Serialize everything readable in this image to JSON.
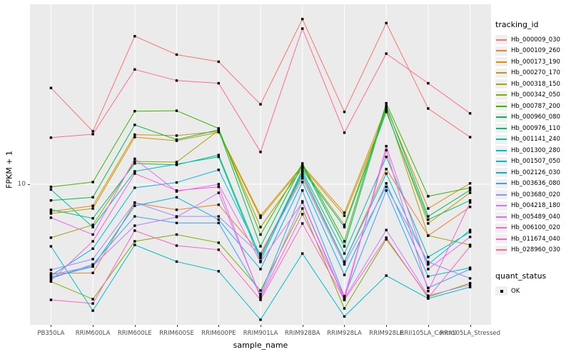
{
  "chart_data": {
    "type": "line",
    "title": "",
    "xlabel": "sample_name",
    "ylabel": "FPKM + 1",
    "y_scale": "log10",
    "y_ticks": [
      {
        "value": 10,
        "label": "10"
      }
    ],
    "y_axis_approx_range": [
      2.0,
      70
    ],
    "grid": "on",
    "panel_bg": "#EBEBEB",
    "grid_color": "#FFFFFF",
    "marker_color": "#000000",
    "categories": [
      "PB350LA",
      "RRIM600LA",
      "RRIM600LE",
      "RRIM600SE",
      "RRIM600PE",
      "RRIM901LA",
      "RRIM928BA",
      "RRIM928LA",
      "RRIM928LE",
      "RRII105LA_Control",
      "RRII105LA_Stressed"
    ],
    "series": [
      {
        "name": "Hb_000009_030",
        "color": "#F8766D",
        "values": [
          30.3,
          18.4,
          55,
          44.5,
          41,
          25.1,
          67,
          23,
          64,
          23.9,
          17.2
        ]
      },
      {
        "name": "Hb_000109_260",
        "color": "#EA8331",
        "values": [
          3.58,
          3.6,
          8.07,
          7.45,
          7.9,
          4.5,
          11,
          4.08,
          11.9,
          5.53,
          7.7
        ]
      },
      {
        "name": "Hb_000173_190",
        "color": "#D89000",
        "values": [
          7.3,
          7.8,
          17.7,
          17.5,
          18.4,
          6.96,
          12.4,
          7.2,
          24.3,
          7.56,
          10.1
        ]
      },
      {
        "name": "Hb_000270_170",
        "color": "#C09B00",
        "values": [
          7.14,
          7.56,
          17.2,
          16.5,
          18.2,
          6.8,
          12.2,
          6.96,
          23.3,
          6.36,
          9.06
        ]
      },
      {
        "name": "Hb_000318_150",
        "color": "#A3A500",
        "values": [
          5.4,
          6.26,
          13,
          12.9,
          18.6,
          6.1,
          12.05,
          6.26,
          23.9,
          5.53,
          4.97
        ]
      },
      {
        "name": "Hb_000342_050",
        "color": "#7CAE00",
        "values": [
          3.26,
          2.66,
          5.18,
          5.6,
          5.1,
          2.94,
          7.56,
          2.39,
          5.3,
          2.73,
          3.2
        ]
      },
      {
        "name": "Hb_000787_200",
        "color": "#39B600",
        "values": [
          9.7,
          10.25,
          23.2,
          23.3,
          19,
          5.6,
          12.7,
          5.18,
          25.4,
          8.7,
          9.6
        ]
      },
      {
        "name": "Hb_000960_080",
        "color": "#00BB4E",
        "values": [
          8.3,
          8.6,
          19.8,
          16.7,
          18.7,
          4.89,
          12.5,
          4.89,
          24.7,
          6.9,
          9.35
        ]
      },
      {
        "name": "Hb_000976_110",
        "color": "#00BF7D",
        "values": [
          7.45,
          6.75,
          12.7,
          12.5,
          14,
          4.28,
          11.8,
          6.1,
          23,
          6.65,
          8.3
        ]
      },
      {
        "name": "Hb_001141_240",
        "color": "#00C1A3",
        "values": [
          9.4,
          6.1,
          11.6,
          12.6,
          13.7,
          4.13,
          11.6,
          4.5,
          13.7,
          4.32,
          5.76
        ]
      },
      {
        "name": "Hb_001300_280",
        "color": "#00BFC4",
        "values": [
          4.89,
          2.33,
          4.97,
          4.1,
          3.67,
          2.1,
          4.5,
          2.18,
          3.49,
          2.68,
          3.06
        ]
      },
      {
        "name": "Hb_001507_050",
        "color": "#00BAE0",
        "values": [
          3.49,
          4.76,
          9.6,
          10.2,
          11.8,
          4.4,
          11.3,
          4.1,
          11.3,
          3.97,
          5.9
        ]
      },
      {
        "name": "Hb_002126_030",
        "color": "#00B0F6",
        "values": [
          3.43,
          3.87,
          7.8,
          8.6,
          6.65,
          3.76,
          10.25,
          3.52,
          10.1,
          3.46,
          3.82
        ]
      },
      {
        "name": "Hb_003636_080",
        "color": "#35A2FF",
        "values": [
          3.38,
          3.97,
          6.9,
          6.4,
          6.4,
          2.82,
          9.3,
          2.75,
          9.3,
          3.03,
          3.76
        ]
      },
      {
        "name": "Hb_003680_020",
        "color": "#9590FF",
        "values": [
          3.73,
          4.22,
          8.1,
          6.9,
          6.9,
          4.43,
          10.7,
          3.97,
          9.7,
          4.08,
          3.38
        ]
      },
      {
        "name": "Hb_004218_180",
        "color": "#C77CFF",
        "values": [
          3.52,
          3.9,
          6.2,
          6.85,
          9.06,
          2.75,
          8.2,
          2.68,
          5.9,
          2.77,
          3.14
        ]
      },
      {
        "name": "Hb_005489_040",
        "color": "#E76BF3",
        "values": [
          6.8,
          5.6,
          13.4,
          9.2,
          10,
          4.08,
          8.1,
          2.64,
          15.5,
          3.76,
          5.45
        ]
      },
      {
        "name": "Hb_006100_020",
        "color": "#FA62DB",
        "values": [
          3.3,
          5.18,
          11.3,
          9.3,
          9.7,
          2.7,
          7.08,
          2.75,
          14.8,
          2.92,
          8.1
        ]
      },
      {
        "name": "Hb_011674_040",
        "color": "#FF61C3",
        "values": [
          2.64,
          2.53,
          5.86,
          4.93,
          4.7,
          2.64,
          6.36,
          2.64,
          5.4,
          2.7,
          4.89
        ]
      },
      {
        "name": "Hb_028960_030",
        "color": "#FF6A98",
        "values": [
          17.1,
          17.8,
          37.5,
          33,
          32,
          14.5,
          60,
          18.1,
          45,
          32,
          22.6
        ]
      }
    ],
    "legend_position": "right"
  },
  "legend": {
    "tracking_title": "tracking_id",
    "quant_title": "quant_status",
    "quant_items": [
      "OK"
    ]
  }
}
